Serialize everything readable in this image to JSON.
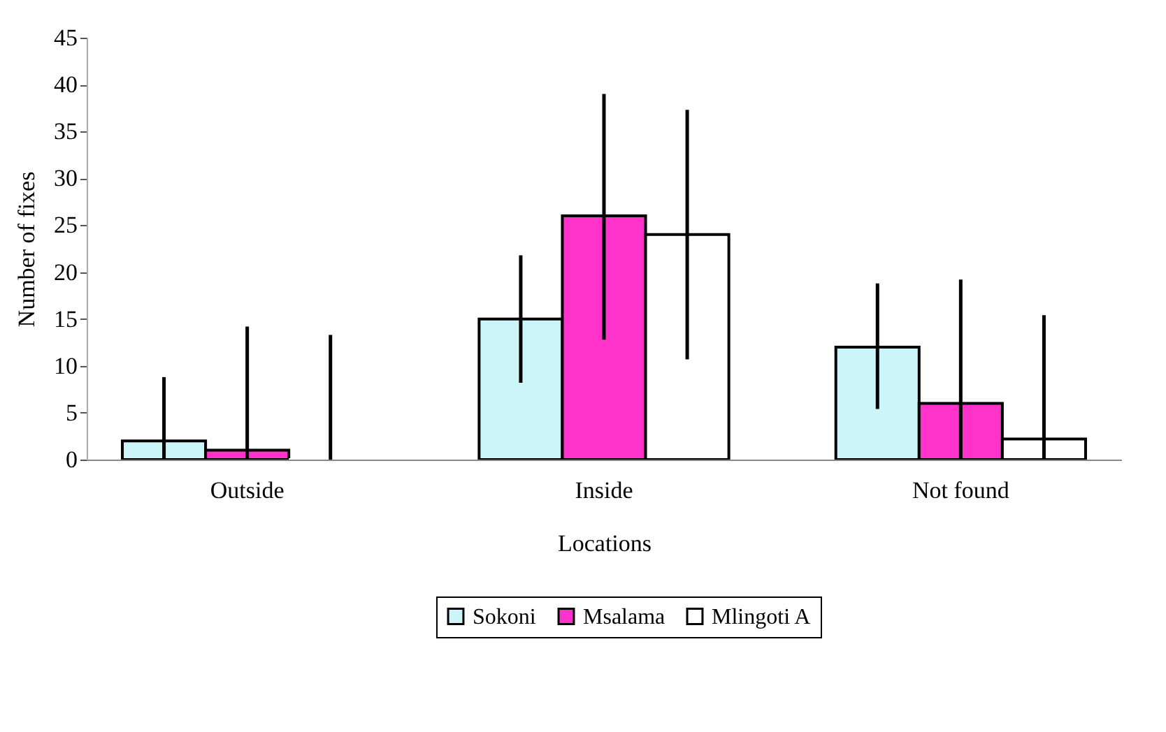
{
  "chart_data": {
    "type": "bar",
    "xlabel": "Locations",
    "ylabel": "Number of fixes",
    "categories": [
      "Outside",
      "Inside",
      "Not found"
    ],
    "series": [
      {
        "name": "Sokoni",
        "color": "#ccf5fa",
        "values": [
          2,
          15,
          12
        ],
        "errors": [
          [
            0,
            8.8
          ],
          [
            8.2,
            21.8
          ],
          [
            5.4,
            18.8
          ]
        ]
      },
      {
        "name": "Msalama",
        "color": "#ff33cc",
        "values": [
          1,
          26,
          6
        ],
        "errors": [
          [
            0,
            14.2
          ],
          [
            12.8,
            39
          ],
          [
            0,
            19.2
          ]
        ]
      },
      {
        "name": "Mlingoti A",
        "color": "#ffffff",
        "values": [
          0,
          24,
          2.2
        ],
        "errors": [
          [
            0,
            13.3
          ],
          [
            10.7,
            37.3
          ],
          [
            0,
            15.4
          ]
        ]
      }
    ],
    "ylim": [
      0,
      45
    ],
    "yticks": [
      0,
      5,
      10,
      15,
      20,
      25,
      30,
      35,
      40,
      45
    ],
    "grid": false,
    "legend": "bottom"
  }
}
